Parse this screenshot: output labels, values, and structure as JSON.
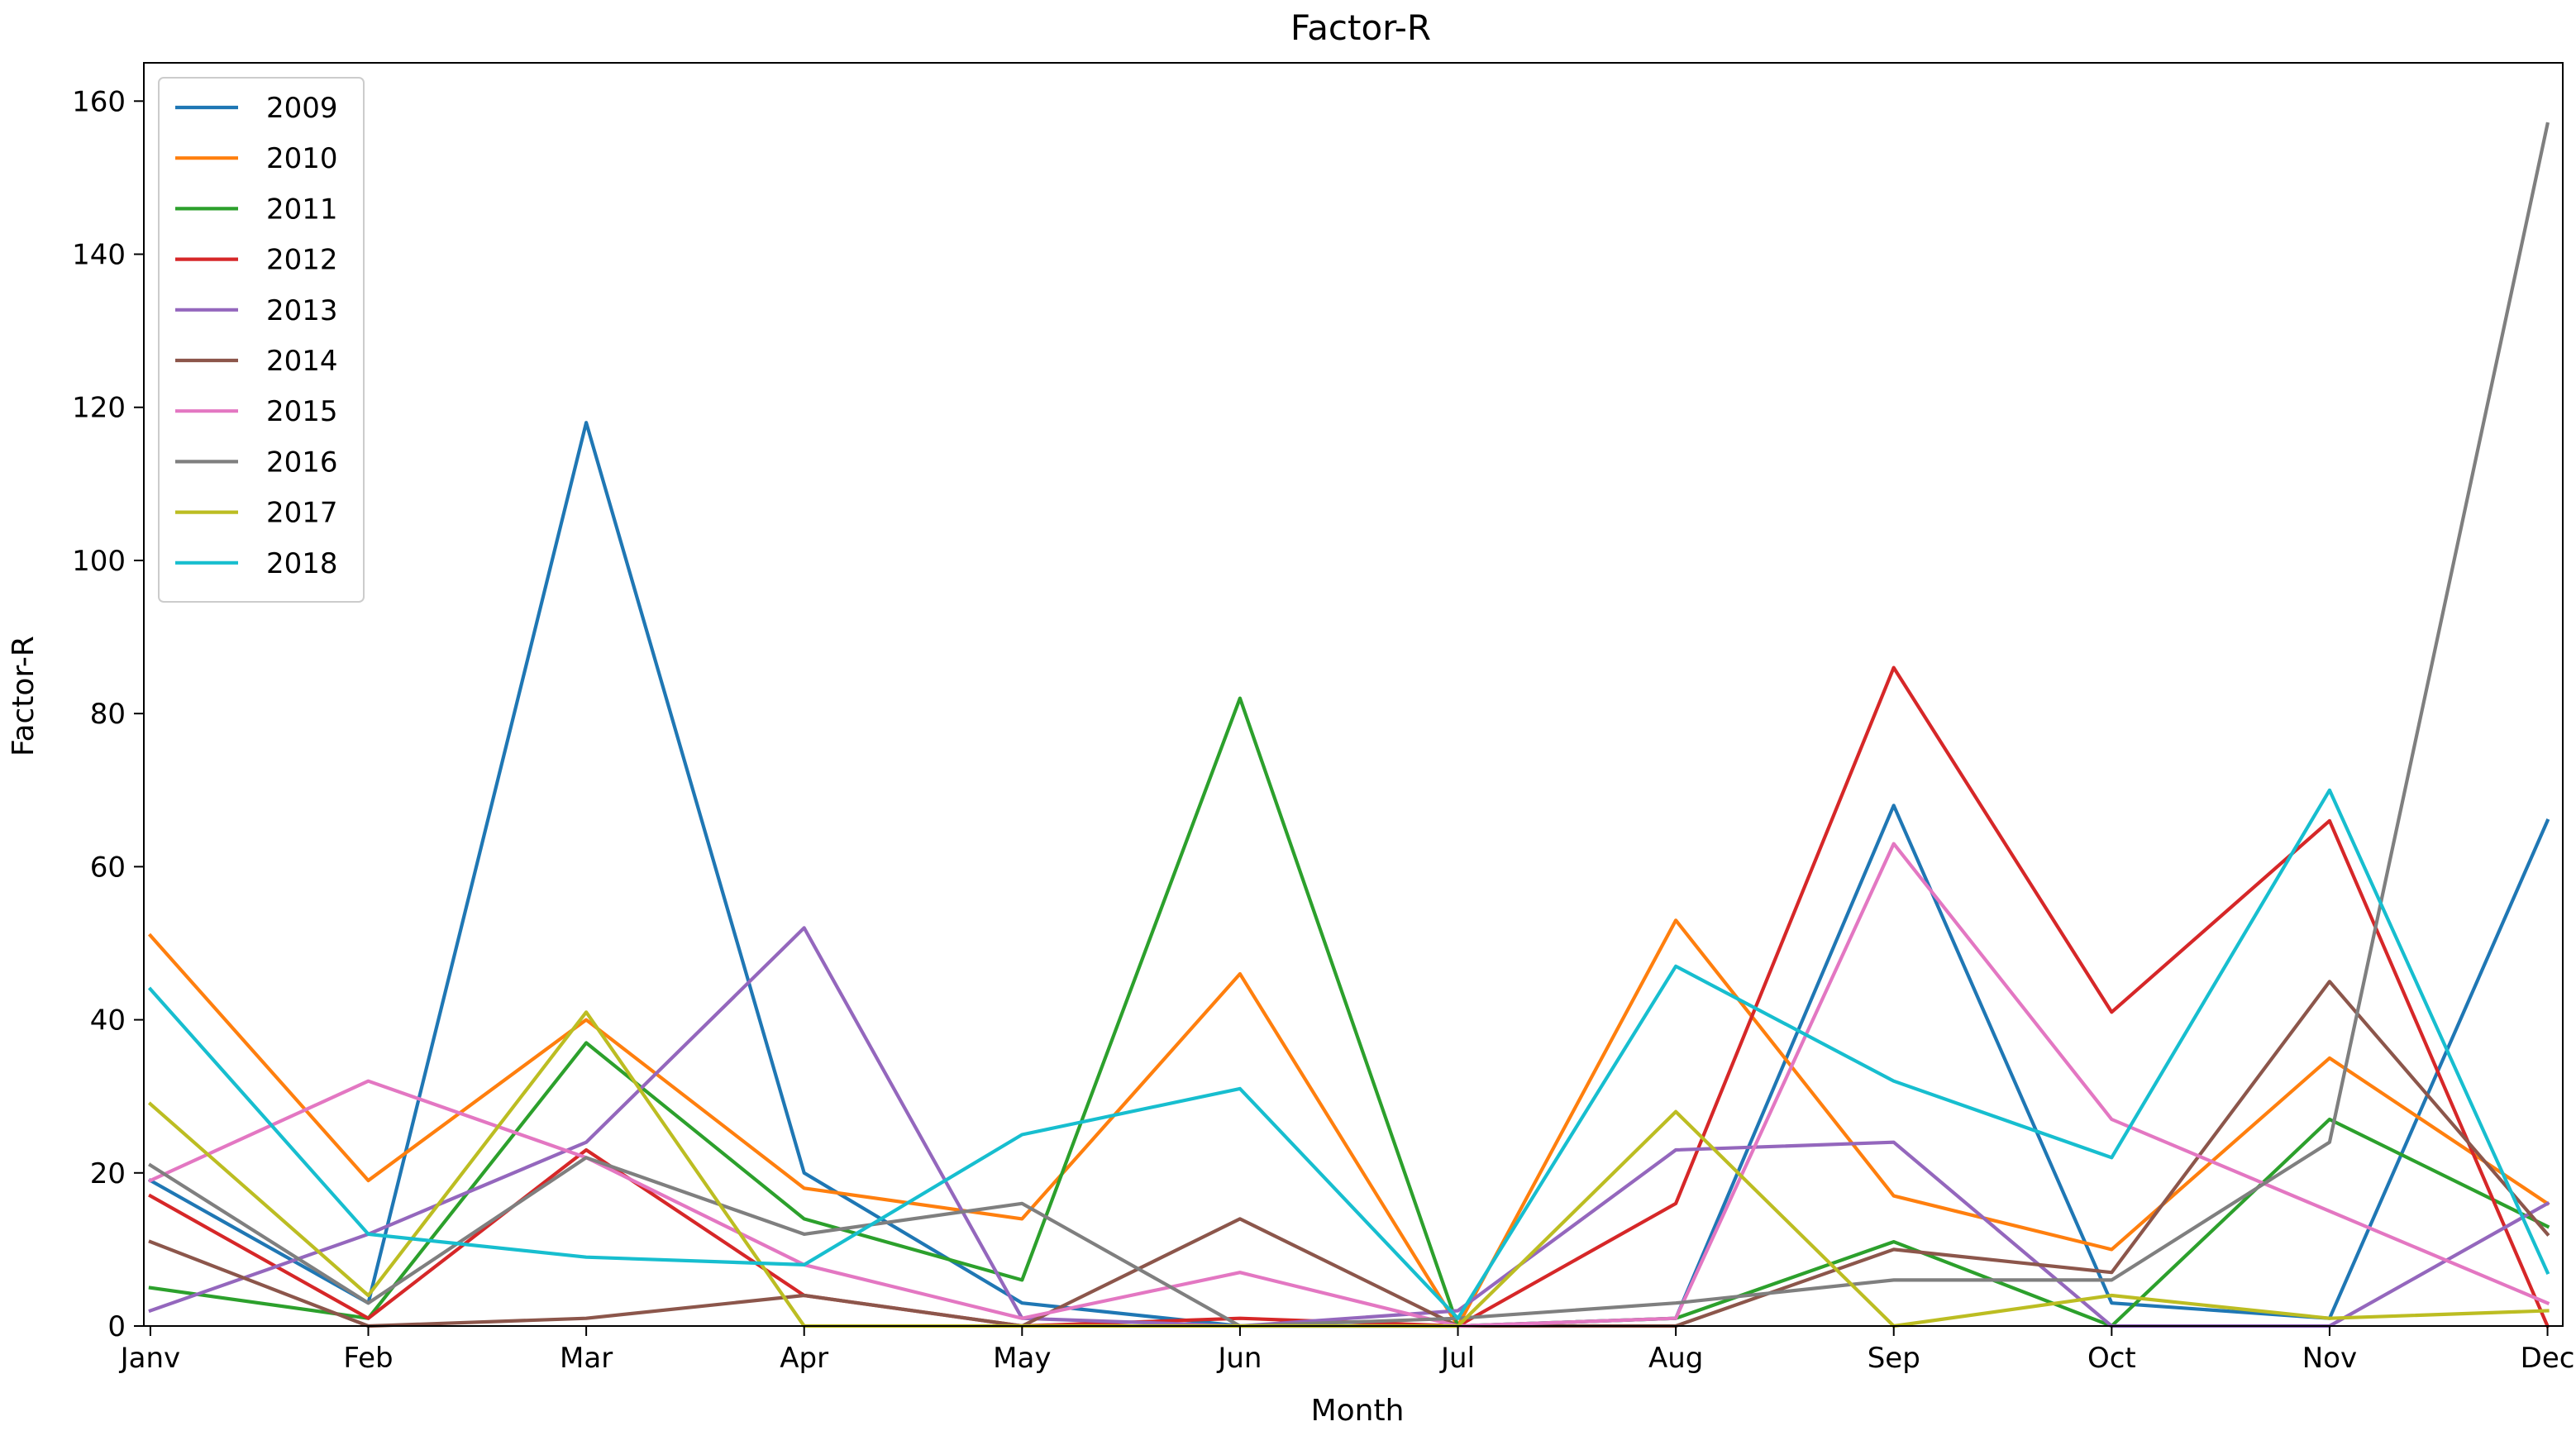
{
  "chart_data": {
    "type": "line",
    "title": "Factor-R",
    "xlabel": "Month",
    "ylabel": "Factor-R",
    "categories": [
      "Janv",
      "Feb",
      "Mar",
      "Apr",
      "May",
      "Jun",
      "Jul",
      "Aug",
      "Sep",
      "Oct",
      "Nov",
      "Dec"
    ],
    "xlim": [
      -0.03,
      11.07
    ],
    "ylim": [
      0,
      165
    ],
    "yticks": [
      0,
      20,
      40,
      60,
      80,
      100,
      120,
      140,
      160
    ],
    "grid": false,
    "legend_position": "upper-left",
    "series": [
      {
        "name": "2009",
        "color": "#1f77b4",
        "values": [
          19,
          3,
          118,
          20,
          3,
          0,
          0,
          1,
          68,
          3,
          1,
          66
        ]
      },
      {
        "name": "2010",
        "color": "#ff7f0e",
        "values": [
          51,
          19,
          40,
          18,
          14,
          46,
          0,
          53,
          17,
          10,
          35,
          16
        ]
      },
      {
        "name": "2011",
        "color": "#2ca02c",
        "values": [
          5,
          1,
          37,
          14,
          6,
          82,
          0,
          1,
          11,
          0,
          27,
          13
        ]
      },
      {
        "name": "2012",
        "color": "#d62728",
        "values": [
          17,
          1,
          23,
          4,
          0,
          1,
          0,
          16,
          86,
          41,
          66,
          0
        ]
      },
      {
        "name": "2013",
        "color": "#9467bd",
        "values": [
          2,
          12,
          24,
          52,
          1,
          0,
          2,
          23,
          24,
          0,
          0,
          16
        ]
      },
      {
        "name": "2014",
        "color": "#8c564b",
        "values": [
          11,
          0,
          1,
          4,
          0,
          14,
          0,
          0,
          10,
          7,
          45,
          12
        ]
      },
      {
        "name": "2015",
        "color": "#e377c2",
        "values": [
          19,
          32,
          22,
          8,
          1,
          7,
          0,
          1,
          63,
          27,
          15,
          3
        ]
      },
      {
        "name": "2016",
        "color": "#7f7f7f",
        "values": [
          21,
          3,
          22,
          12,
          16,
          0,
          1,
          3,
          6,
          6,
          24,
          157
        ]
      },
      {
        "name": "2017",
        "color": "#bcbd22",
        "values": [
          29,
          4,
          41,
          0,
          0,
          0,
          0,
          28,
          0,
          4,
          1,
          2
        ]
      },
      {
        "name": "2018",
        "color": "#17becf",
        "values": [
          44,
          12,
          9,
          8,
          25,
          31,
          1,
          47,
          32,
          22,
          70,
          7
        ]
      }
    ]
  }
}
